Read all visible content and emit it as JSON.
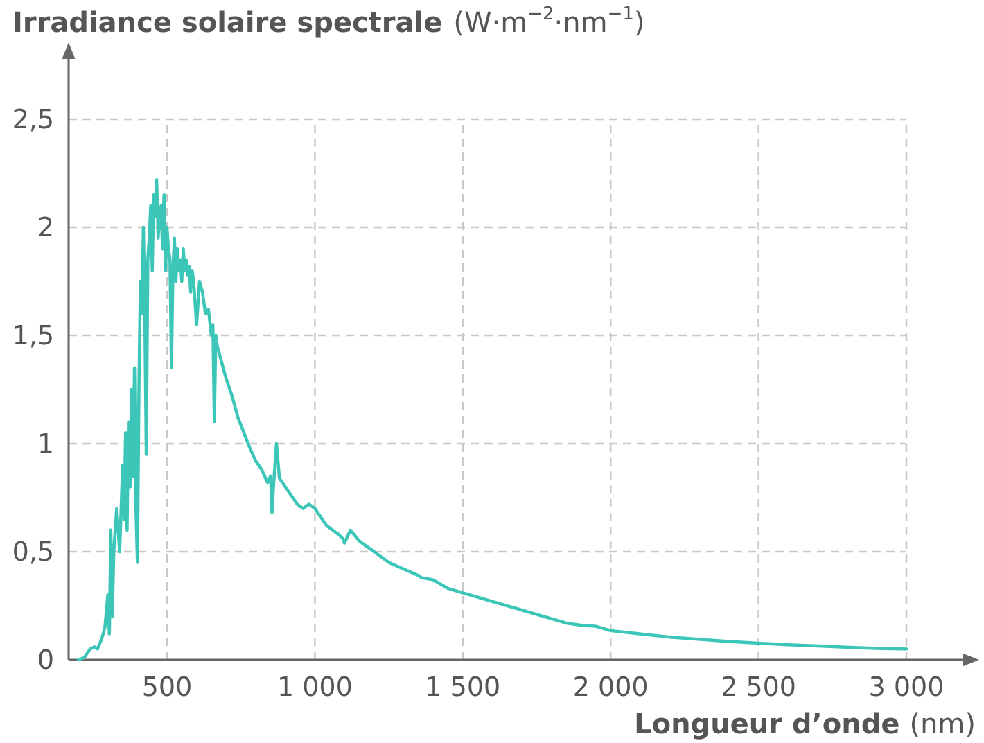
{
  "chart_data": {
    "type": "line",
    "title": "",
    "ylabel": "Irradiance solaire spectrale",
    "ylabel_unit_parts": [
      "W·m",
      "−2",
      "·nm",
      "−1"
    ],
    "xlabel": "Longueur d’onde",
    "xlabel_unit": "(nm)",
    "xlim": [
      200,
      3200
    ],
    "ylim": [
      0,
      2.8
    ],
    "x_ticks": [
      {
        "value": 500,
        "label": "500"
      },
      {
        "value": 1000,
        "label": "1 000"
      },
      {
        "value": 1500,
        "label": "1 500"
      },
      {
        "value": 2000,
        "label": "2 000"
      },
      {
        "value": 2500,
        "label": "2 500"
      },
      {
        "value": 3000,
        "label": "3 000"
      }
    ],
    "y_ticks": [
      {
        "value": 0,
        "label": "0"
      },
      {
        "value": 0.5,
        "label": "0,5"
      },
      {
        "value": 1,
        "label": "1"
      },
      {
        "value": 1.5,
        "label": "1,5"
      },
      {
        "value": 2,
        "label": "2"
      },
      {
        "value": 2.5,
        "label": "2,5"
      }
    ],
    "grid": true,
    "line_color": "#3cc6b8",
    "series": [
      {
        "x": [
          200,
          220,
          240,
          255,
          265,
          280,
          290,
          300,
          305,
          310,
          315,
          320,
          330,
          340,
          350,
          355,
          360,
          365,
          370,
          375,
          380,
          385,
          390,
          395,
          400,
          405,
          410,
          415,
          420,
          425,
          430,
          435,
          440,
          445,
          450,
          455,
          460,
          465,
          470,
          475,
          480,
          485,
          490,
          495,
          500,
          505,
          510,
          515,
          520,
          525,
          530,
          535,
          540,
          545,
          550,
          555,
          560,
          565,
          570,
          575,
          580,
          585,
          590,
          600,
          610,
          620,
          630,
          640,
          650,
          655,
          660,
          665,
          670,
          680,
          700,
          720,
          740,
          760,
          780,
          800,
          820,
          840,
          850,
          855,
          860,
          870,
          880,
          900,
          920,
          940,
          960,
          980,
          1000,
          1020,
          1040,
          1060,
          1080,
          1095,
          1100,
          1120,
          1150,
          1200,
          1250,
          1300,
          1350,
          1360,
          1400,
          1450,
          1500,
          1550,
          1600,
          1650,
          1700,
          1750,
          1800,
          1850,
          1900,
          1950,
          2000,
          2100,
          2200,
          2300,
          2400,
          2500,
          2600,
          2700,
          2800,
          2900,
          3000
        ],
        "y": [
          0.0,
          0.01,
          0.05,
          0.06,
          0.05,
          0.1,
          0.15,
          0.3,
          0.12,
          0.6,
          0.2,
          0.5,
          0.7,
          0.5,
          0.9,
          0.65,
          1.05,
          0.6,
          1.1,
          0.8,
          1.25,
          0.85,
          1.35,
          0.7,
          0.45,
          1.25,
          1.75,
          1.6,
          2.0,
          1.6,
          0.95,
          1.85,
          1.95,
          2.1,
          1.8,
          2.15,
          2.05,
          2.22,
          1.95,
          2.05,
          2.1,
          1.9,
          2.15,
          1.8,
          2.0,
          1.9,
          1.85,
          1.35,
          1.8,
          1.95,
          1.75,
          1.9,
          1.8,
          1.85,
          1.75,
          1.9,
          1.8,
          1.85,
          1.78,
          1.82,
          1.7,
          1.8,
          1.75,
          1.55,
          1.75,
          1.7,
          1.6,
          1.62,
          1.5,
          1.55,
          1.1,
          1.5,
          1.45,
          1.4,
          1.3,
          1.22,
          1.12,
          1.05,
          0.98,
          0.92,
          0.88,
          0.82,
          0.85,
          0.68,
          0.8,
          1.0,
          0.84,
          0.8,
          0.76,
          0.72,
          0.7,
          0.72,
          0.7,
          0.66,
          0.62,
          0.6,
          0.58,
          0.56,
          0.54,
          0.6,
          0.55,
          0.5,
          0.45,
          0.42,
          0.39,
          0.38,
          0.37,
          0.33,
          0.31,
          0.29,
          0.27,
          0.25,
          0.23,
          0.21,
          0.19,
          0.17,
          0.16,
          0.155,
          0.135,
          0.12,
          0.105,
          0.095,
          0.085,
          0.077,
          0.07,
          0.064,
          0.058,
          0.053,
          0.05
        ]
      }
    ]
  }
}
